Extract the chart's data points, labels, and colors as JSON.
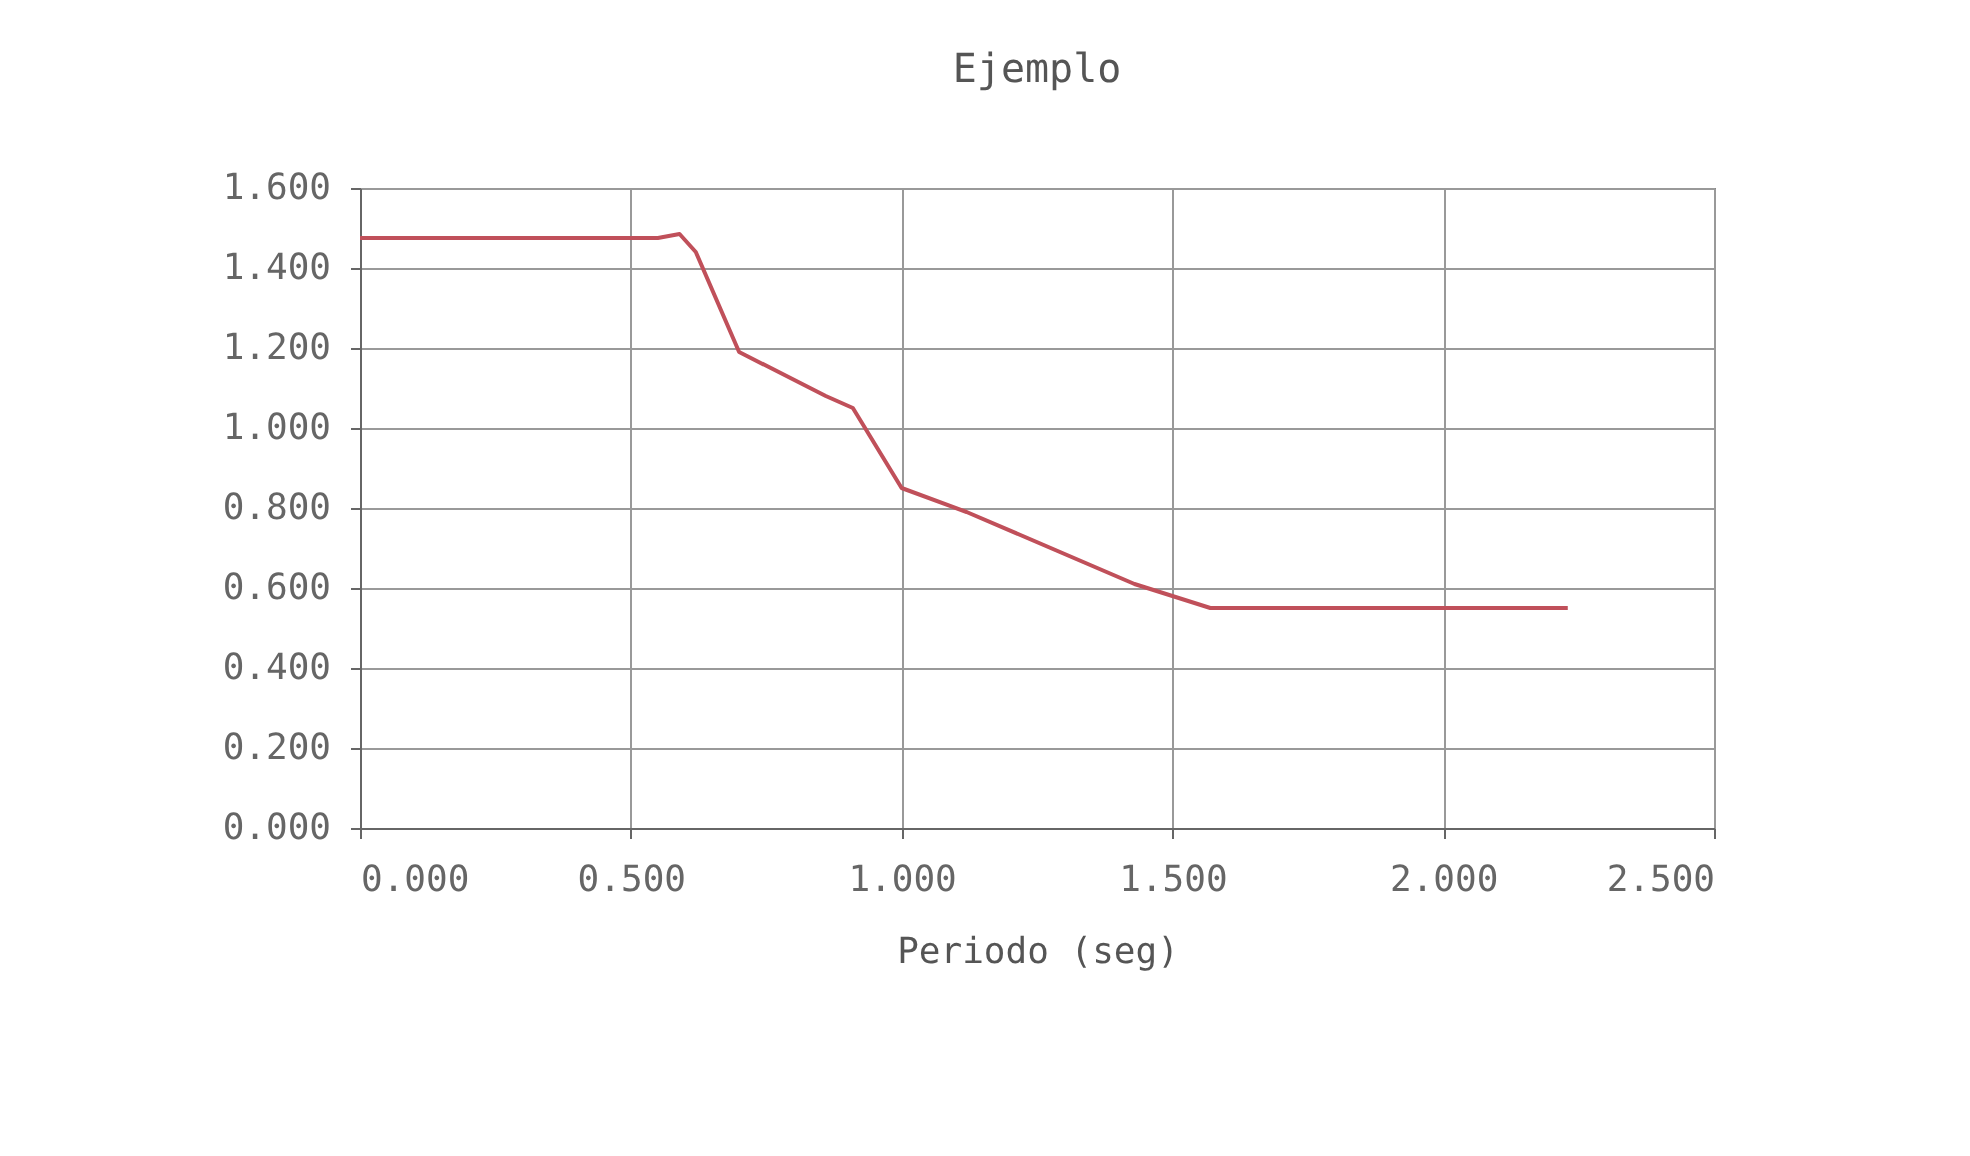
{
  "chart_data": {
    "type": "line",
    "title": "Ejemplo",
    "xlabel": "Periodo  (seg)",
    "x": [
      0,
      0.55,
      0.59,
      0.62,
      0.7,
      0.86,
      0.91,
      1.0,
      1.12,
      1.43,
      1.57,
      2.23
    ],
    "series": [
      {
        "color": "#c0505a",
        "values": [
          1.475,
          1.475,
          1.485,
          1.44,
          1.19,
          1.08,
          1.05,
          0.85,
          0.79,
          0.61,
          0.55,
          0.55
        ]
      }
    ],
    "xlim": [
      0,
      2.5
    ],
    "xticks": [
      {
        "value": 0,
        "label": "0.000"
      },
      {
        "value": 0.5,
        "label": "0.500"
      },
      {
        "value": 1,
        "label": "1.000"
      },
      {
        "value": 1.5,
        "label": "1.500"
      },
      {
        "value": 2,
        "label": "2.000"
      },
      {
        "value": 2.5,
        "label": "2.500"
      }
    ],
    "ylim": [
      0,
      1.6
    ],
    "yticks": [
      {
        "value": 0,
        "label": "0.000"
      },
      {
        "value": 0.2,
        "label": "0.200"
      },
      {
        "value": 0.4,
        "label": "0.400"
      },
      {
        "value": 0.6,
        "label": "0.600"
      },
      {
        "value": 0.8,
        "label": "0.800"
      },
      {
        "value": 1,
        "label": "1.000"
      },
      {
        "value": 1.2,
        "label": "1.200"
      },
      {
        "value": 1.4,
        "label": "1.400"
      },
      {
        "value": 1.6,
        "label": "1.600"
      }
    ],
    "grid": true,
    "marker": "none",
    "line_style": "solid"
  }
}
